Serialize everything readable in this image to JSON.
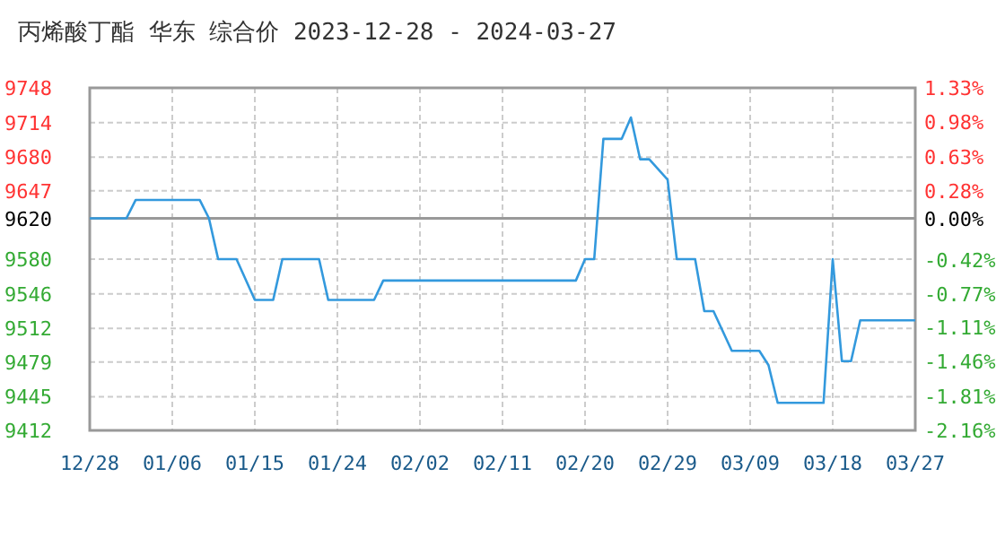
{
  "chart_data": {
    "type": "line",
    "title": "丙烯酸丁酯 华东 综合价 2023-12-28 - 2024-03-27",
    "x": [
      "2023-12-28",
      "2024-01-01",
      "2024-01-02",
      "2024-01-09",
      "2024-01-10",
      "2024-01-11",
      "2024-01-13",
      "2024-01-15",
      "2024-01-17",
      "2024-01-18",
      "2024-01-22",
      "2024-01-23",
      "2024-01-28",
      "2024-01-29",
      "2024-02-19",
      "2024-02-20",
      "2024-02-21",
      "2024-02-22",
      "2024-02-24",
      "2024-02-25",
      "2024-02-26",
      "2024-02-27",
      "2024-02-29",
      "2024-03-01",
      "2024-03-03",
      "2024-03-04",
      "2024-03-05",
      "2024-03-07",
      "2024-03-10",
      "2024-03-11",
      "2024-03-12",
      "2024-03-17",
      "2024-03-18",
      "2024-03-19",
      "2024-03-20",
      "2024-03-21",
      "2024-03-27"
    ],
    "series": [
      {
        "color": "#3399dd",
        "values": [
          9620,
          9620,
          9638,
          9638,
          9620,
          9580,
          9580,
          9540,
          9540,
          9580,
          9580,
          9540,
          9540,
          9559,
          9559,
          9580,
          9580,
          9698,
          9698,
          9719,
          9678,
          9678,
          9658,
          9580,
          9580,
          9529,
          9529,
          9490,
          9490,
          9476,
          9439,
          9439,
          9580,
          9480,
          9480,
          9520,
          9520
        ]
      }
    ],
    "xlim": [
      "2023-12-28",
      "2024-03-27"
    ],
    "xticks": [
      {
        "value": "2023-12-28",
        "label": "12/28"
      },
      {
        "value": "2024-01-06",
        "label": "01/06"
      },
      {
        "value": "2024-01-15",
        "label": "01/15"
      },
      {
        "value": "2024-01-24",
        "label": "01/24"
      },
      {
        "value": "2024-02-02",
        "label": "02/02"
      },
      {
        "value": "2024-02-11",
        "label": "02/11"
      },
      {
        "value": "2024-02-20",
        "label": "02/20"
      },
      {
        "value": "2024-02-29",
        "label": "02/29"
      },
      {
        "value": "2024-03-09",
        "label": "03/09"
      },
      {
        "value": "2024-03-18",
        "label": "03/18"
      },
      {
        "value": "2024-03-27",
        "label": "03/27"
      }
    ],
    "ylim": [
      9412,
      9748
    ],
    "yticks": [
      9412,
      9445,
      9479,
      9512,
      9546,
      9580,
      9620,
      9647,
      9680,
      9714,
      9748
    ],
    "y2lim": [
      -2.16,
      1.33
    ],
    "y2ticks": [
      {
        "value": -2.16,
        "label": "-2.16%"
      },
      {
        "value": -1.81,
        "label": "-1.81%"
      },
      {
        "value": -1.46,
        "label": "-1.46%"
      },
      {
        "value": -1.11,
        "label": "-1.11%"
      },
      {
        "value": -0.77,
        "label": "-0.77%"
      },
      {
        "value": -0.42,
        "label": "-0.42%"
      },
      {
        "value": 0,
        "label": "0.00%"
      },
      {
        "value": 0.28,
        "label": "0.28%"
      },
      {
        "value": 0.63,
        "label": "0.63%"
      },
      {
        "value": 0.98,
        "label": "0.98%"
      },
      {
        "value": 1.33,
        "label": "1.33%"
      }
    ],
    "ref_lines": [
      {
        "axis": "y",
        "value": 9620,
        "color": "#999999"
      }
    ],
    "grid": true,
    "marker": "none",
    "line_style": "solid"
  }
}
